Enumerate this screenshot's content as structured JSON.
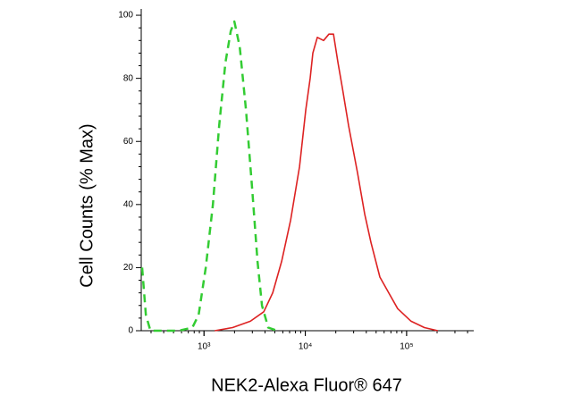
{
  "chart_data": {
    "type": "line",
    "ylabel": "Cell Counts (% Max)",
    "xlabel": "NEK2-Alexa Fluor® 647",
    "xscale": "log",
    "xlim": [
      240,
      460000
    ],
    "ylim": [
      0,
      102
    ],
    "xticks": [
      {
        "value": 1000,
        "label": "10³"
      },
      {
        "value": 10000,
        "label": "10⁴"
      },
      {
        "value": 100000,
        "label": "10⁵"
      }
    ],
    "yticks": [
      0,
      20,
      40,
      60,
      80,
      100
    ],
    "series": [
      {
        "color": "#33cc33",
        "dash": true,
        "x": [
          245,
          267,
          296,
          566,
          768,
          885,
          1041,
          1225,
          1411,
          1627,
          1838,
          1993,
          2252,
          2594,
          2988,
          3378,
          3735,
          4306,
          5275
        ],
        "values": [
          20,
          5,
          0,
          0,
          1,
          5,
          20,
          40,
          65,
          85,
          95,
          98,
          90,
          70,
          45,
          22,
          8,
          1,
          0
        ]
      },
      {
        "color": "#dd2222",
        "dash": false,
        "x": [
          1275,
          1914,
          2871,
          3892,
          4767,
          5845,
          7157,
          8766,
          10100,
          11170,
          11880,
          13150,
          15160,
          17100,
          18960,
          20990,
          23230,
          26750,
          32750,
          38530,
          44450,
          54450,
          66680,
          81650,
          110700,
          150000,
          203200
        ],
        "values": [
          0,
          1,
          3,
          6,
          12,
          22,
          35,
          52,
          70,
          80,
          88,
          93,
          92,
          94,
          94,
          85,
          77,
          65,
          50,
          37,
          28,
          17,
          12,
          7,
          3,
          1,
          0
        ]
      }
    ]
  }
}
